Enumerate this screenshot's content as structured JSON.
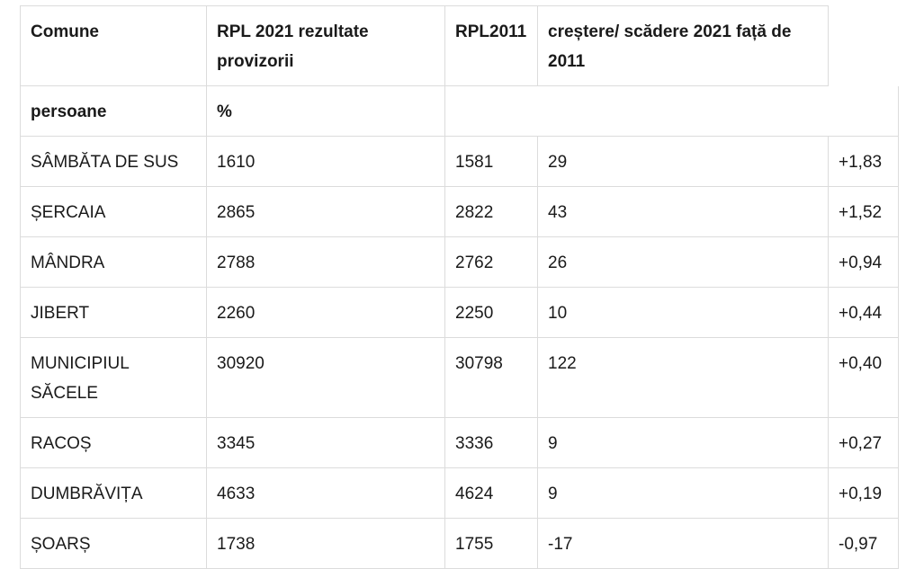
{
  "table": {
    "header": {
      "col1": "Comune",
      "col2": "RPL 2021 rezultate provizorii",
      "col3": "RPL2011",
      "col4": "creștere/ scădere 2021 față de 2011"
    },
    "subheader": {
      "col1": "persoane",
      "col2": "%"
    },
    "rows": [
      {
        "name": "SÂMBĂTA DE SUS",
        "rpl2021": "1610",
        "rpl2011": "1581",
        "diff": "29",
        "pct": "+1,83"
      },
      {
        "name": "ȘERCAIA",
        "rpl2021": "2865",
        "rpl2011": "2822",
        "diff": "43",
        "pct": "+1,52"
      },
      {
        "name": "MÂNDRA",
        "rpl2021": "2788",
        "rpl2011": "2762",
        "diff": "26",
        "pct": "+0,94"
      },
      {
        "name": "JIBERT",
        "rpl2021": "2260",
        "rpl2011": "2250",
        "diff": "10",
        "pct": "+0,44"
      },
      {
        "name": "MUNICIPIUL SĂCELE",
        "rpl2021": "30920",
        "rpl2011": "30798",
        "diff": "122",
        "pct": "+0,40"
      },
      {
        "name": "RACOȘ",
        "rpl2021": "3345",
        "rpl2011": "3336",
        "diff": "9",
        "pct": "+0,27"
      },
      {
        "name": "DUMBRĂVIȚA",
        "rpl2021": "4633",
        "rpl2011": "4624",
        "diff": "9",
        "pct": "+0,19"
      },
      {
        "name": "ȘOARȘ",
        "rpl2021": "1738",
        "rpl2011": "1755",
        "diff": "-17",
        "pct": "-0,97"
      }
    ]
  }
}
